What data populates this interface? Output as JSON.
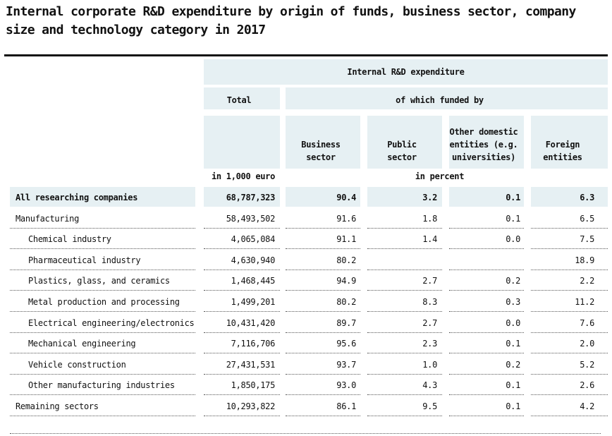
{
  "title": "Internal corporate R&D expenditure by origin of funds, business sector, company size and technology category in 2017",
  "header": {
    "group": "Internal R&D expenditure",
    "total": "Total",
    "funded_by": "of which funded by",
    "business_sector": "Business sector",
    "public_sector": "Public sector",
    "other_domestic": "Other domestic entities (e.g. universities)",
    "foreign": "Foreign entities",
    "unit_total": "in 1,000 euro",
    "unit_percent": "in percent"
  },
  "rows": [
    {
      "label": "All researching companies",
      "total": "68,787,323",
      "business": "90.4",
      "public": "3.2",
      "other": "0.1",
      "foreign": "6.3"
    },
    {
      "label": "Manufacturing",
      "total": "58,493,502",
      "business": "91.6",
      "public": "1.8",
      "other": "0.1",
      "foreign": "6.5"
    },
    {
      "label": "Chemical industry",
      "total": "4,065,084",
      "business": "91.1",
      "public": "1.4",
      "other": "0.0",
      "foreign": "7.5"
    },
    {
      "label": "Pharmaceutical industry",
      "total": "4,630,940",
      "business": "80.2",
      "public": "",
      "other": "",
      "foreign": "18.9"
    },
    {
      "label": "Plastics, glass, and ceramics",
      "total": "1,468,445",
      "business": "94.9",
      "public": "2.7",
      "other": "0.2",
      "foreign": "2.2"
    },
    {
      "label": "Metal production and processing",
      "total": "1,499,201",
      "business": "80.2",
      "public": "8.3",
      "other": "0.3",
      "foreign": "11.2"
    },
    {
      "label": "Electrical engineering/electronics",
      "total": "10,431,420",
      "business": "89.7",
      "public": "2.7",
      "other": "0.0",
      "foreign": "7.6"
    },
    {
      "label": "Mechanical engineering",
      "total": "7,116,706",
      "business": "95.6",
      "public": "2.3",
      "other": "0.1",
      "foreign": "2.0"
    },
    {
      "label": "Vehicle construction",
      "total": "27,431,531",
      "business": "93.7",
      "public": "1.0",
      "other": "0.2",
      "foreign": "5.2"
    },
    {
      "label": "Other manufacturing industries",
      "total": "1,850,175",
      "business": "93.0",
      "public": "4.3",
      "other": "0.1",
      "foreign": "2.6"
    },
    {
      "label": "Remaining sectors",
      "total": "10,293,822",
      "business": "86.1",
      "public": "9.5",
      "other": "0.1",
      "foreign": "4.2"
    }
  ]
}
